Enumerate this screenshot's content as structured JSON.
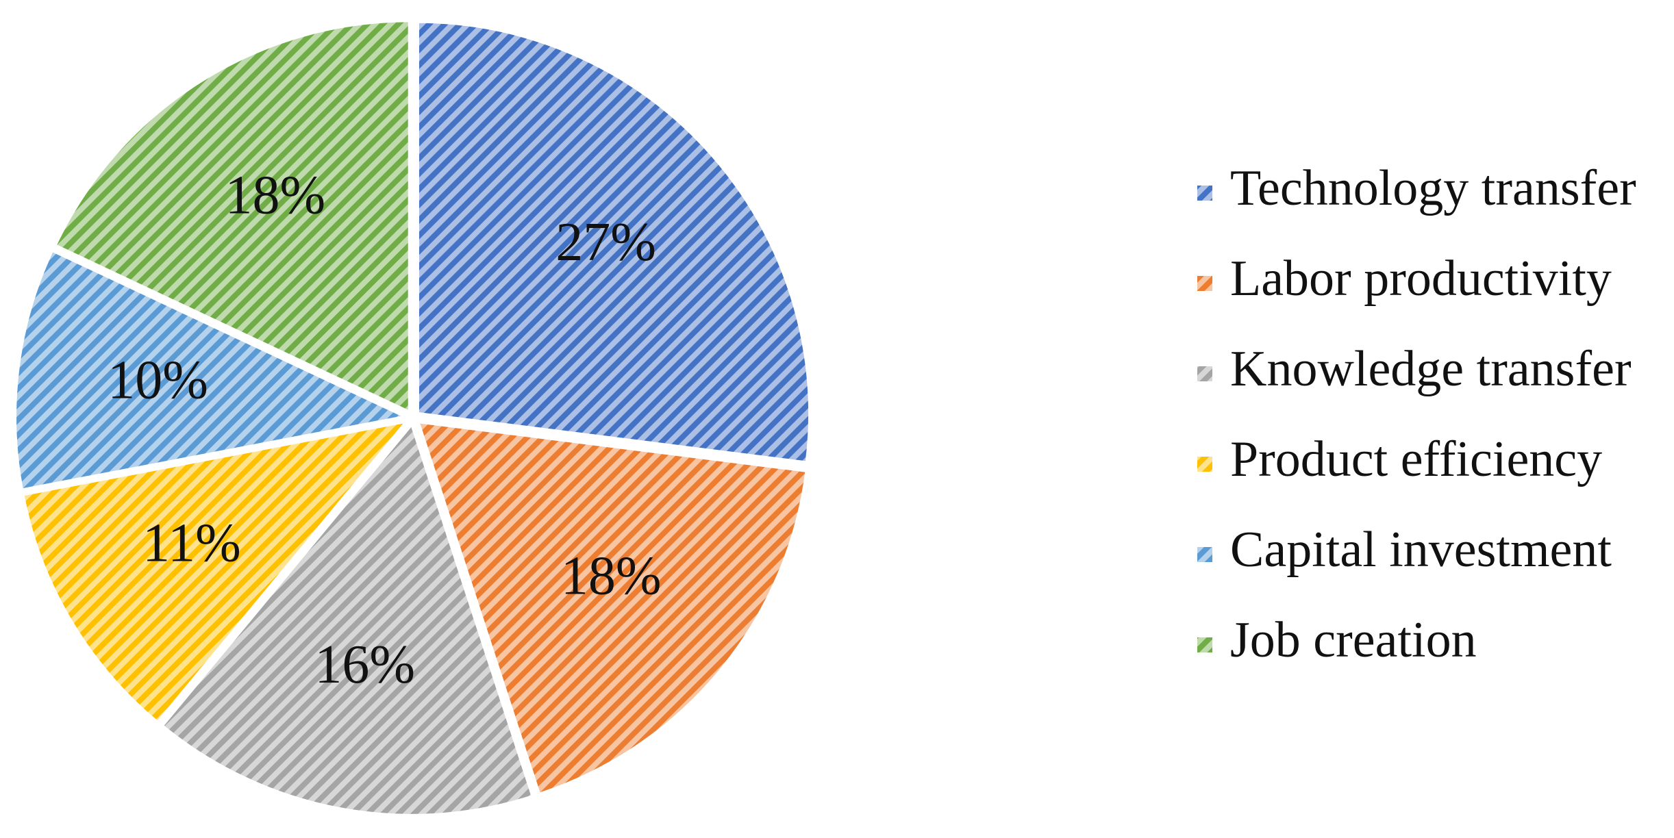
{
  "chart_data": {
    "type": "pie",
    "title": "",
    "legend_position": "right",
    "slices": [
      {
        "name": "Technology transfer",
        "value": 27,
        "label": "27%",
        "color": "#4472C4"
      },
      {
        "name": "Labor productivity",
        "value": 18,
        "label": "18%",
        "color": "#ED7D31"
      },
      {
        "name": "Knowledge transfer",
        "value": 16,
        "label": "16%",
        "color": "#A5A5A5"
      },
      {
        "name": "Product efficiency",
        "value": 11,
        "label": "11%",
        "color": "#FFC000"
      },
      {
        "name": "Capital investment",
        "value": 10,
        "label": "10%",
        "color": "#5B9BD5"
      },
      {
        "name": "Job creation",
        "value": 18,
        "label": "18%",
        "color": "#70AD47"
      }
    ]
  }
}
